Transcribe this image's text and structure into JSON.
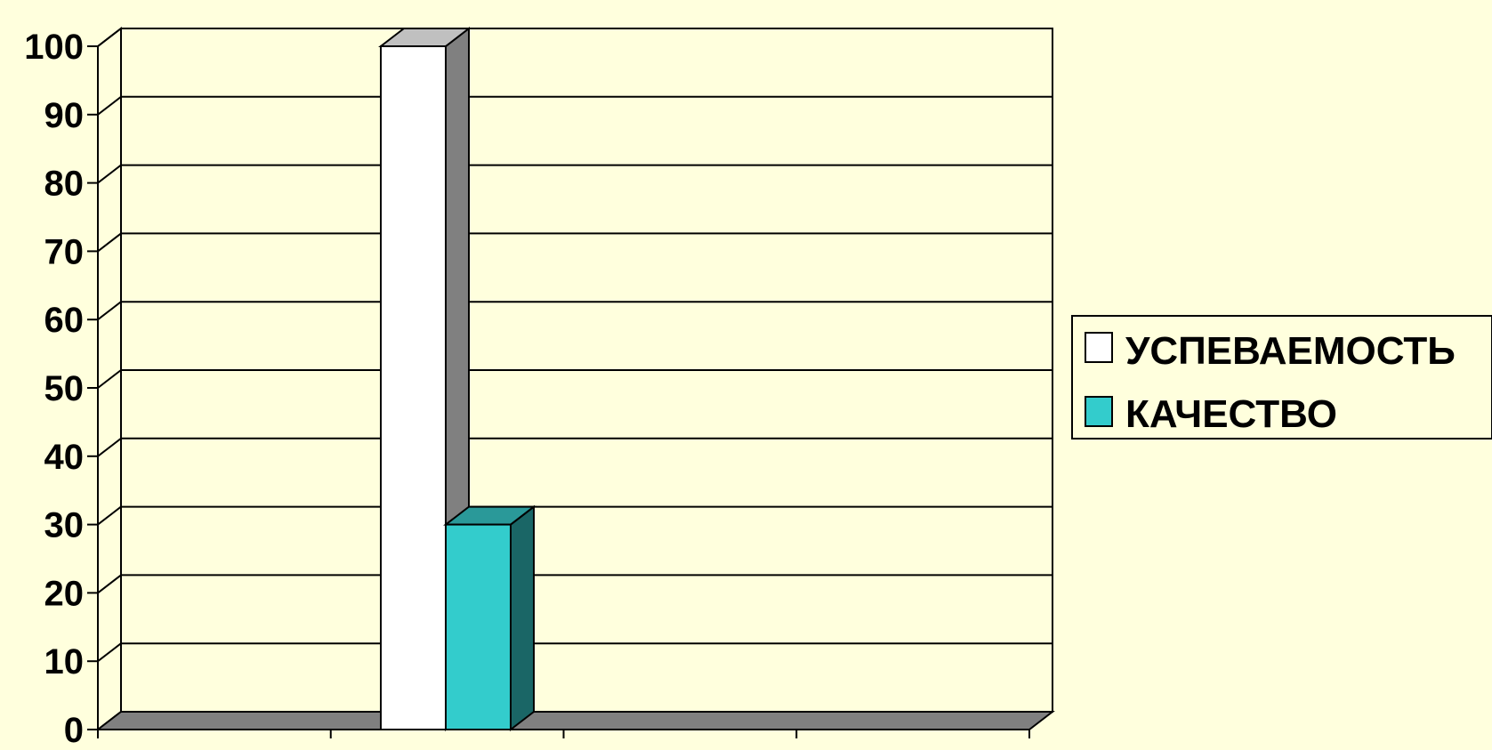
{
  "chart_data": {
    "type": "bar",
    "three_d": true,
    "categories": [
      ""
    ],
    "series": [
      {
        "name": "УСПЕВАЕМОСТЬ",
        "values": [
          100
        ],
        "color": "#ffffff",
        "side_color": "#808080",
        "top_color": "#c0c0c0"
      },
      {
        "name": "КАЧЕСТВО",
        "values": [
          30
        ],
        "color": "#33cccc",
        "side_color": "#1a6666",
        "top_color": "#2a9999"
      }
    ],
    "title": "",
    "xlabel": "",
    "ylabel": "",
    "ylim": [
      0,
      100
    ],
    "yticks": [
      "0",
      "10",
      "20",
      "30",
      "40",
      "50",
      "60",
      "70",
      "80",
      "90",
      "100"
    ],
    "grid": true,
    "legend_position": "right",
    "colors": {
      "background": "#ffffdd",
      "plot_background": "#ffffdd",
      "floor": "#808080",
      "gridline": "#000000"
    }
  }
}
